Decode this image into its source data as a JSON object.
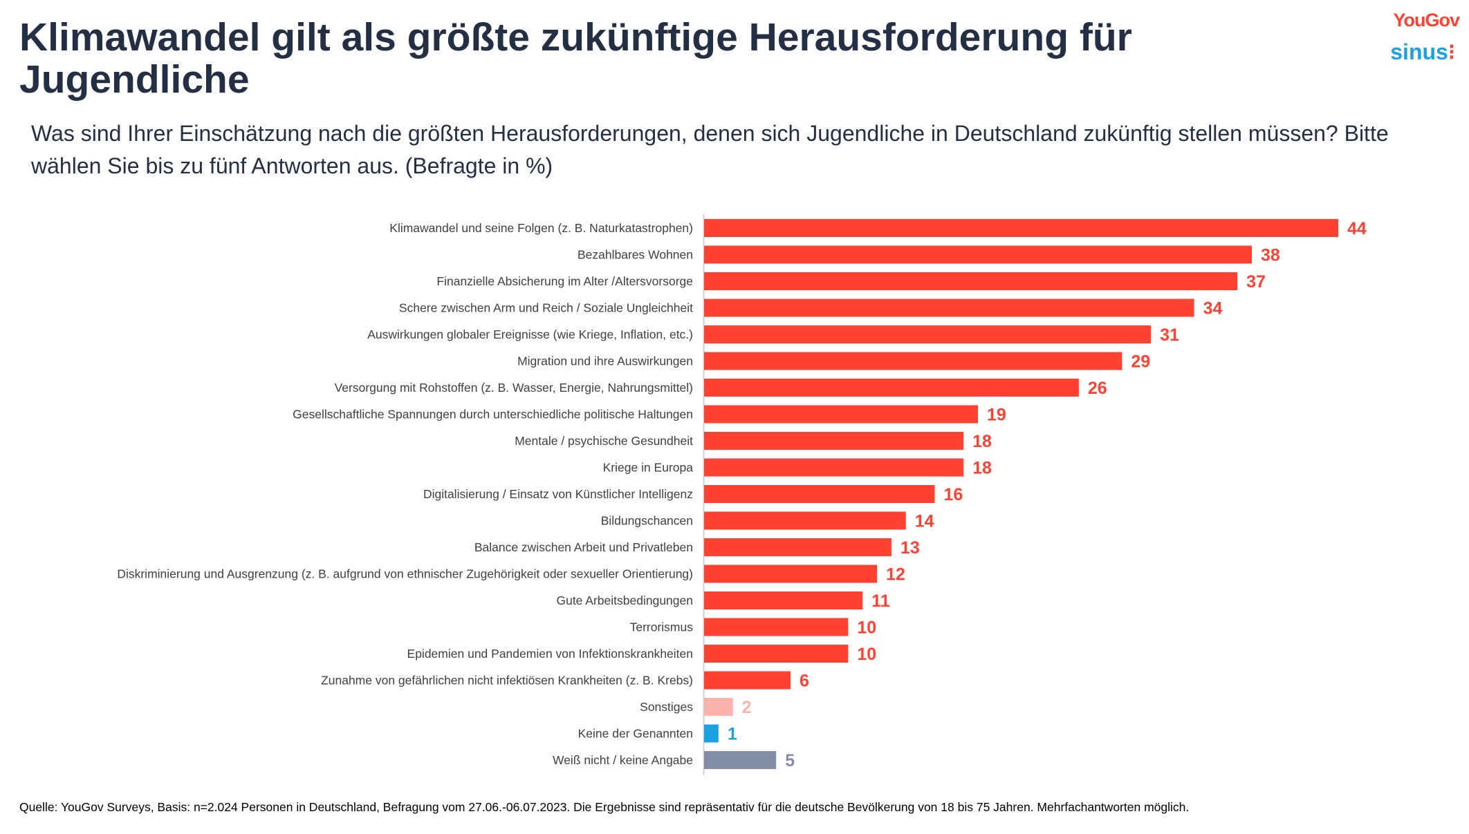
{
  "header": {
    "title": "Klimawandel gilt als größte zukünftige Herausforderung für Jugendliche",
    "subtitle": "Was sind Ihrer Einschätzung nach die größten Herausforderungen, denen sich Jugendliche in Deutschland zukünftig stellen müssen? Bitte wählen Sie bis zu fünf Antworten aus. (Befragte in %)",
    "logos": {
      "yougov": "YouGov",
      "sinus": "sinus"
    }
  },
  "chart_data": {
    "type": "bar",
    "orientation": "horizontal",
    "categories": [
      "Klimawandel und seine Folgen (z. B.  Naturkatastrophen)",
      "Bezahlbares Wohnen",
      "Finanzielle Absicherung im Alter /Altersvorsorge",
      "Schere zwischen Arm und Reich / Soziale Ungleichheit",
      "Auswirkungen globaler Ereignisse (wie Kriege, Inflation, etc.)",
      "Migration und ihre Auswirkungen",
      "Versorgung mit Rohstoffen (z. B. Wasser, Energie, Nahrungsmittel)",
      "Gesellschaftliche Spannungen durch unterschiedliche politische Haltungen",
      "Mentale / psychische Gesundheit",
      "Kriege in Europa",
      "Digitalisierung / Einsatz von Künstlicher Intelligenz",
      "Bildungschancen",
      "Balance zwischen Arbeit und Privatleben",
      "Diskriminierung und Ausgrenzung (z. B. aufgrund von ethnischer Zugehörigkeit oder sexueller Orientierung)",
      "Gute Arbeitsbedingungen",
      "Terrorismus",
      "Epidemien und Pandemien von Infektionskrankheiten",
      "Zunahme von gefährlichen nicht infektiösen Krankheiten (z. B. Krebs)",
      "Sonstiges",
      "Keine der Genannten",
      "Weiß nicht / keine Angabe"
    ],
    "values": [
      44,
      38,
      37,
      34,
      31,
      29,
      26,
      19,
      18,
      18,
      16,
      14,
      13,
      12,
      11,
      10,
      10,
      6,
      2,
      1,
      5
    ],
    "colors": [
      "#ff4132",
      "#ff4132",
      "#ff4132",
      "#ff4132",
      "#ff4132",
      "#ff4132",
      "#ff4132",
      "#ff4132",
      "#ff4132",
      "#ff4132",
      "#ff4132",
      "#ff4132",
      "#ff4132",
      "#ff4132",
      "#ff4132",
      "#ff4132",
      "#ff4132",
      "#ff4132",
      "#fbb3ab",
      "#1ba1e2",
      "#838da6"
    ],
    "xlim": [
      0,
      44
    ],
    "grid": false,
    "data_labels": true
  },
  "footer": {
    "source": "Quelle: YouGov Surveys, Basis: n=2.024 Personen in Deutschland, Befragung vom 27.06.-06.07.2023. Die Ergebnisse sind repräsentativ für die deutsche Bevölkerung von 18 bis 75 Jahren. Mehrfachantworten möglich."
  }
}
